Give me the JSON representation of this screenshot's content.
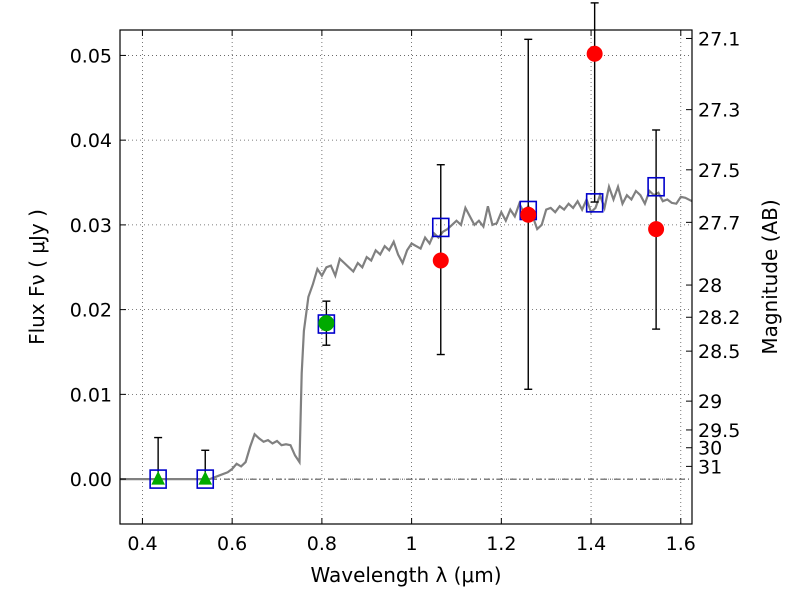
{
  "chart_data": {
    "type": "scatter",
    "xlabel": "Wavelength  λ (μm)",
    "ylabel": "Flux  Fν  ( μJy )",
    "y2label": "Magnitude (AB)",
    "xlim": [
      0.35,
      1.625
    ],
    "ylim": [
      -0.0053,
      0.053
    ],
    "xticks": [
      {
        "value": 0.4,
        "label": "0.4"
      },
      {
        "value": 0.6,
        "label": "0.6"
      },
      {
        "value": 0.8,
        "label": "0.8"
      },
      {
        "value": 1.0,
        "label": "1"
      },
      {
        "value": 1.2,
        "label": "1.2"
      },
      {
        "value": 1.4,
        "label": "1.4"
      },
      {
        "value": 1.6,
        "label": "1.6"
      }
    ],
    "yticks": [
      {
        "value": 0.0,
        "label": "0.00"
      },
      {
        "value": 0.01,
        "label": "0.01"
      },
      {
        "value": 0.02,
        "label": "0.02"
      },
      {
        "value": 0.03,
        "label": "0.03"
      },
      {
        "value": 0.04,
        "label": "0.04"
      },
      {
        "value": 0.05,
        "label": "0.05"
      }
    ],
    "y2ticks": [
      {
        "flux": 0.052,
        "label": "27.1"
      },
      {
        "flux": 0.0436,
        "label": "27.3"
      },
      {
        "flux": 0.0365,
        "label": "27.5"
      },
      {
        "flux": 0.0303,
        "label": "27.7"
      },
      {
        "flux": 0.0229,
        "label": "28"
      },
      {
        "flux": 0.0191,
        "label": "28.2"
      },
      {
        "flux": 0.0151,
        "label": "28.5"
      },
      {
        "flux": 0.0092,
        "label": "29"
      },
      {
        "flux": 0.0058,
        "label": "29.5"
      },
      {
        "flux": 0.0037,
        "label": "30"
      },
      {
        "flux": 0.0015,
        "label": "31"
      }
    ],
    "grid": true,
    "series": [
      {
        "kind": "line",
        "color": "#808080",
        "points": [
          [
            0.35,
            0.0
          ],
          [
            0.55,
            0.0
          ],
          [
            0.57,
            0.0004
          ],
          [
            0.59,
            0.0008
          ],
          [
            0.6,
            0.0012
          ],
          [
            0.61,
            0.0018
          ],
          [
            0.62,
            0.0015
          ],
          [
            0.63,
            0.002
          ],
          [
            0.64,
            0.0038
          ],
          [
            0.65,
            0.0053
          ],
          [
            0.66,
            0.0048
          ],
          [
            0.67,
            0.0044
          ],
          [
            0.68,
            0.0046
          ],
          [
            0.69,
            0.0042
          ],
          [
            0.7,
            0.0045
          ],
          [
            0.71,
            0.004
          ],
          [
            0.72,
            0.0041
          ],
          [
            0.73,
            0.004
          ],
          [
            0.74,
            0.0028
          ],
          [
            0.75,
            0.002
          ],
          [
            0.755,
            0.0125
          ],
          [
            0.76,
            0.0175
          ],
          [
            0.77,
            0.0215
          ],
          [
            0.78,
            0.023
          ],
          [
            0.79,
            0.0248
          ],
          [
            0.8,
            0.024
          ],
          [
            0.81,
            0.025
          ],
          [
            0.82,
            0.0252
          ],
          [
            0.83,
            0.024
          ],
          [
            0.84,
            0.026
          ],
          [
            0.85,
            0.0255
          ],
          [
            0.86,
            0.025
          ],
          [
            0.87,
            0.0245
          ],
          [
            0.88,
            0.0255
          ],
          [
            0.89,
            0.025
          ],
          [
            0.9,
            0.0262
          ],
          [
            0.91,
            0.0258
          ],
          [
            0.92,
            0.027
          ],
          [
            0.93,
            0.0265
          ],
          [
            0.94,
            0.0275
          ],
          [
            0.95,
            0.027
          ],
          [
            0.96,
            0.028
          ],
          [
            0.97,
            0.0265
          ],
          [
            0.98,
            0.0255
          ],
          [
            0.99,
            0.027
          ],
          [
            1.0,
            0.0278
          ],
          [
            1.01,
            0.0275
          ],
          [
            1.02,
            0.0272
          ],
          [
            1.03,
            0.0285
          ],
          [
            1.04,
            0.0278
          ],
          [
            1.05,
            0.029
          ],
          [
            1.06,
            0.0285
          ],
          [
            1.07,
            0.0292
          ],
          [
            1.08,
            0.0295
          ],
          [
            1.09,
            0.03
          ],
          [
            1.1,
            0.0305
          ],
          [
            1.11,
            0.03
          ],
          [
            1.12,
            0.032
          ],
          [
            1.13,
            0.031
          ],
          [
            1.14,
            0.03
          ],
          [
            1.15,
            0.0305
          ],
          [
            1.16,
            0.0298
          ],
          [
            1.17,
            0.0322
          ],
          [
            1.18,
            0.03
          ],
          [
            1.19,
            0.0302
          ],
          [
            1.2,
            0.0315
          ],
          [
            1.21,
            0.0305
          ],
          [
            1.22,
            0.0318
          ],
          [
            1.23,
            0.031
          ],
          [
            1.24,
            0.0325
          ],
          [
            1.25,
            0.0315
          ],
          [
            1.26,
            0.0322
          ],
          [
            1.27,
            0.031
          ],
          [
            1.28,
            0.0295
          ],
          [
            1.29,
            0.03
          ],
          [
            1.3,
            0.0318
          ],
          [
            1.31,
            0.032
          ],
          [
            1.32,
            0.0315
          ],
          [
            1.33,
            0.0322
          ],
          [
            1.34,
            0.0318
          ],
          [
            1.35,
            0.0325
          ],
          [
            1.36,
            0.032
          ],
          [
            1.37,
            0.0328
          ],
          [
            1.38,
            0.0318
          ],
          [
            1.39,
            0.033
          ],
          [
            1.4,
            0.0315
          ],
          [
            1.41,
            0.032
          ],
          [
            1.42,
            0.0335
          ],
          [
            1.43,
            0.032
          ],
          [
            1.44,
            0.0345
          ],
          [
            1.45,
            0.033
          ],
          [
            1.46,
            0.0345
          ],
          [
            1.47,
            0.0325
          ],
          [
            1.48,
            0.0335
          ],
          [
            1.49,
            0.033
          ],
          [
            1.5,
            0.034
          ],
          [
            1.51,
            0.0335
          ],
          [
            1.52,
            0.0325
          ],
          [
            1.53,
            0.034
          ],
          [
            1.54,
            0.0335
          ],
          [
            1.55,
            0.0338
          ],
          [
            1.56,
            0.0328
          ],
          [
            1.57,
            0.033
          ],
          [
            1.58,
            0.0326
          ],
          [
            1.59,
            0.0325
          ],
          [
            1.6,
            0.0333
          ],
          [
            1.61,
            0.0332
          ],
          [
            1.625,
            0.0328
          ]
        ]
      },
      {
        "kind": "model-photometry",
        "marker": "open-square",
        "color": "#0000cc",
        "points": [
          [
            0.435,
            0.0
          ],
          [
            0.54,
            0.0
          ],
          [
            0.81,
            0.0183
          ],
          [
            1.065,
            0.0297
          ],
          [
            1.26,
            0.0317
          ],
          [
            1.408,
            0.0326
          ],
          [
            1.545,
            0.0345
          ]
        ]
      },
      {
        "kind": "upper-limits",
        "marker": "triangle",
        "color": "#00aa00",
        "points": [
          {
            "x": 0.435,
            "y": 0.0,
            "yerr_lo": 0.0,
            "yerr_hi": 0.0049
          },
          {
            "x": 0.54,
            "y": 0.0,
            "yerr_lo": 0.0,
            "yerr_hi": 0.0034
          }
        ]
      },
      {
        "kind": "detection",
        "marker": "circle",
        "color": "#00aa00",
        "points": [
          {
            "x": 0.81,
            "y": 0.0184,
            "yerr_lo": 0.0026,
            "yerr_hi": 0.0026
          }
        ]
      },
      {
        "kind": "measurements",
        "marker": "circle",
        "color": "#ff0000",
        "points": [
          {
            "x": 1.065,
            "y": 0.0258,
            "yerr_lo": 0.0111,
            "yerr_hi": 0.0113
          },
          {
            "x": 1.26,
            "y": 0.0312,
            "yerr_lo": 0.0206,
            "yerr_hi": 0.0207
          },
          {
            "x": 1.408,
            "y": 0.0502,
            "yerr_lo": 0.0175,
            "yerr_hi": 0.006
          },
          {
            "x": 1.545,
            "y": 0.0295,
            "yerr_lo": 0.0118,
            "yerr_hi": 0.0117
          }
        ]
      }
    ]
  }
}
